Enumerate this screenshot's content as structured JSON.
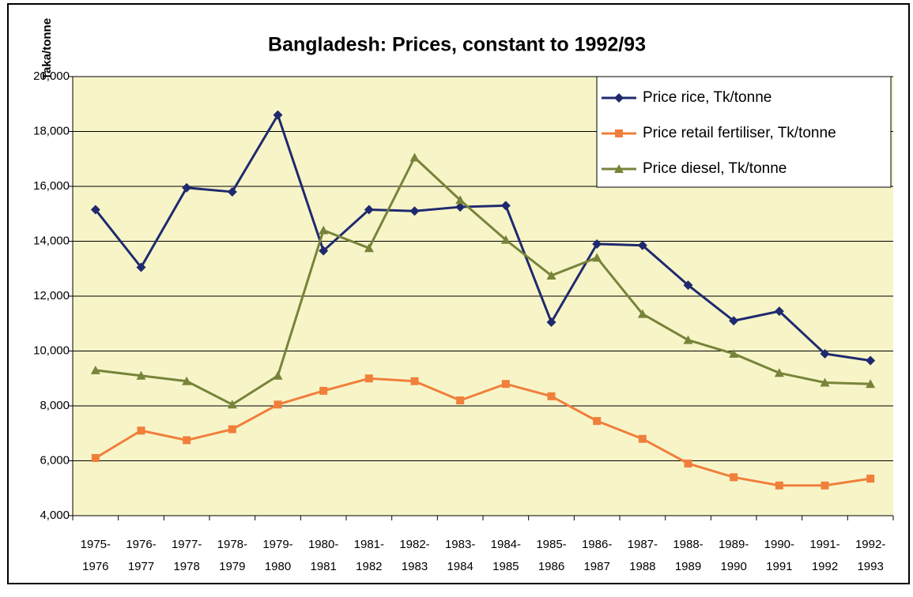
{
  "chart_data": {
    "type": "line",
    "title": "Bangladesh: Prices, constant to 1992/93",
    "y_label": "Taka/tonne",
    "categories": [
      [
        "1975-",
        "1976"
      ],
      [
        "1976-",
        "1977"
      ],
      [
        "1977-",
        "1978"
      ],
      [
        "1978-",
        "1979"
      ],
      [
        "1979-",
        "1980"
      ],
      [
        "1980-",
        "1981"
      ],
      [
        "1981-",
        "1982"
      ],
      [
        "1982-",
        "1983"
      ],
      [
        "1983-",
        "1984"
      ],
      [
        "1984-",
        "1985"
      ],
      [
        "1985-",
        "1986"
      ],
      [
        "1986-",
        "1987"
      ],
      [
        "1987-",
        "1988"
      ],
      [
        "1988-",
        "1989"
      ],
      [
        "1989-",
        "1990"
      ],
      [
        "1990-",
        "1991"
      ],
      [
        "1991-",
        "1992"
      ],
      [
        "1992-",
        "1993"
      ]
    ],
    "series": [
      {
        "name": "Price rice, Tk/tonne",
        "color": "#1f2a6e",
        "marker": "diamond",
        "values": [
          15150,
          13050,
          15950,
          15800,
          18600,
          13650,
          15150,
          15100,
          15250,
          15300,
          11050,
          13900,
          13850,
          12400,
          11100,
          11450,
          9900,
          9650
        ]
      },
      {
        "name": "Price retail fertiliser, Tk/tonne",
        "color": "#f07f3c",
        "marker": "square",
        "values": [
          6100,
          7100,
          6750,
          7150,
          8050,
          8550,
          9000,
          8900,
          8200,
          8800,
          8350,
          7450,
          6800,
          5900,
          5400,
          5100,
          5100,
          5350
        ]
      },
      {
        "name": "Price diesel, Tk/tonne",
        "color": "#77843a",
        "marker": "triangle",
        "values": [
          9300,
          9100,
          8900,
          8050,
          9100,
          14400,
          13750,
          17050,
          15500,
          14050,
          12750,
          13400,
          11350,
          10400,
          9900,
          9200,
          8850,
          8800
        ]
      }
    ],
    "ylim": [
      4000,
      20000
    ],
    "yticks": [
      {
        "value": 4000,
        "label": "4,000"
      },
      {
        "value": 6000,
        "label": "6,000"
      },
      {
        "value": 8000,
        "label": "8,000"
      },
      {
        "value": 10000,
        "label": "10,000"
      },
      {
        "value": 12000,
        "label": "12,000"
      },
      {
        "value": 14000,
        "label": "14,000"
      },
      {
        "value": 16000,
        "label": "16,000"
      },
      {
        "value": 18000,
        "label": "18,000"
      },
      {
        "value": 20000,
        "label": "20,000"
      }
    ],
    "grid": true,
    "legend": "top-right",
    "plot_background": "#f7f5c8"
  }
}
